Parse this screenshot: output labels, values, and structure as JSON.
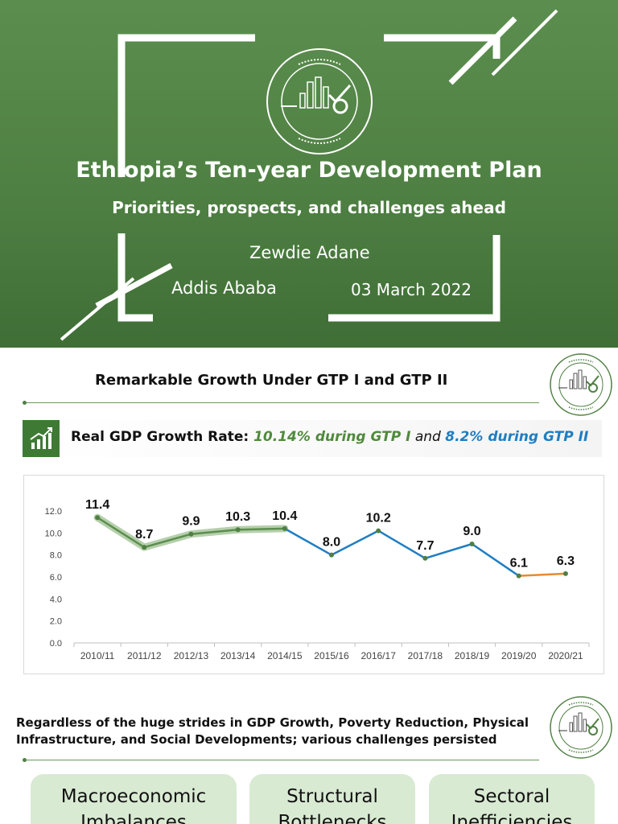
{
  "slide1": {
    "title": "Ethiopia’s Ten-year Development Plan",
    "subtitle": "Priorities, prospects, and challenges ahead",
    "author": "Zewdie Adane",
    "place": "Addis Ababa",
    "date": "03 March 2022"
  },
  "slide2": {
    "title": "Remarkable Growth Under GTP I and GTP II",
    "banner": {
      "prefix": "Real GDP Growth Rate: ",
      "gtp1": "10.14% during GTP I",
      "and": " and ",
      "gtp2": "8.2% during GTP II"
    }
  },
  "slide3": {
    "text": "Regardless of the huge strides in GDP Growth, Poverty Reduction, Physical Infrastructure, and Social Developments; various challenges persisted",
    "boxes": [
      {
        "line1": "Macroeconomic",
        "line2": "Imbalances"
      },
      {
        "line1": "Structural",
        "line2": "Bottlenecks"
      },
      {
        "line1": "Sectoral",
        "line2": "Inefficiencies"
      }
    ]
  },
  "colors": {
    "green": "#4f8043",
    "gtp1_line": "#5b8e4e",
    "gtp2_line": "#1f7ec2",
    "tail_line": "#e88a2e"
  },
  "chart_data": {
    "type": "line",
    "categories": [
      "2010/11",
      "2011/12",
      "2012/13",
      "2013/14",
      "2014/15",
      "2015/16",
      "2016/17",
      "2017/18",
      "2018/19",
      "2019/20",
      "2020/21"
    ],
    "values": [
      11.4,
      8.7,
      9.9,
      10.3,
      10.4,
      8.0,
      10.2,
      7.7,
      9.0,
      6.1,
      6.3
    ],
    "data_labels": [
      "11.4",
      "8.7",
      "9.9",
      "10.3",
      "10.4",
      "8.0",
      "10.2",
      "7.7",
      "9.0",
      "6.1",
      "6.3"
    ],
    "y_ticks": [
      "0.0",
      "2.0",
      "4.0",
      "6.0",
      "8.0",
      "10.0",
      "12.0"
    ],
    "ylim": [
      0,
      12
    ],
    "grid": false,
    "legend": "none"
  }
}
